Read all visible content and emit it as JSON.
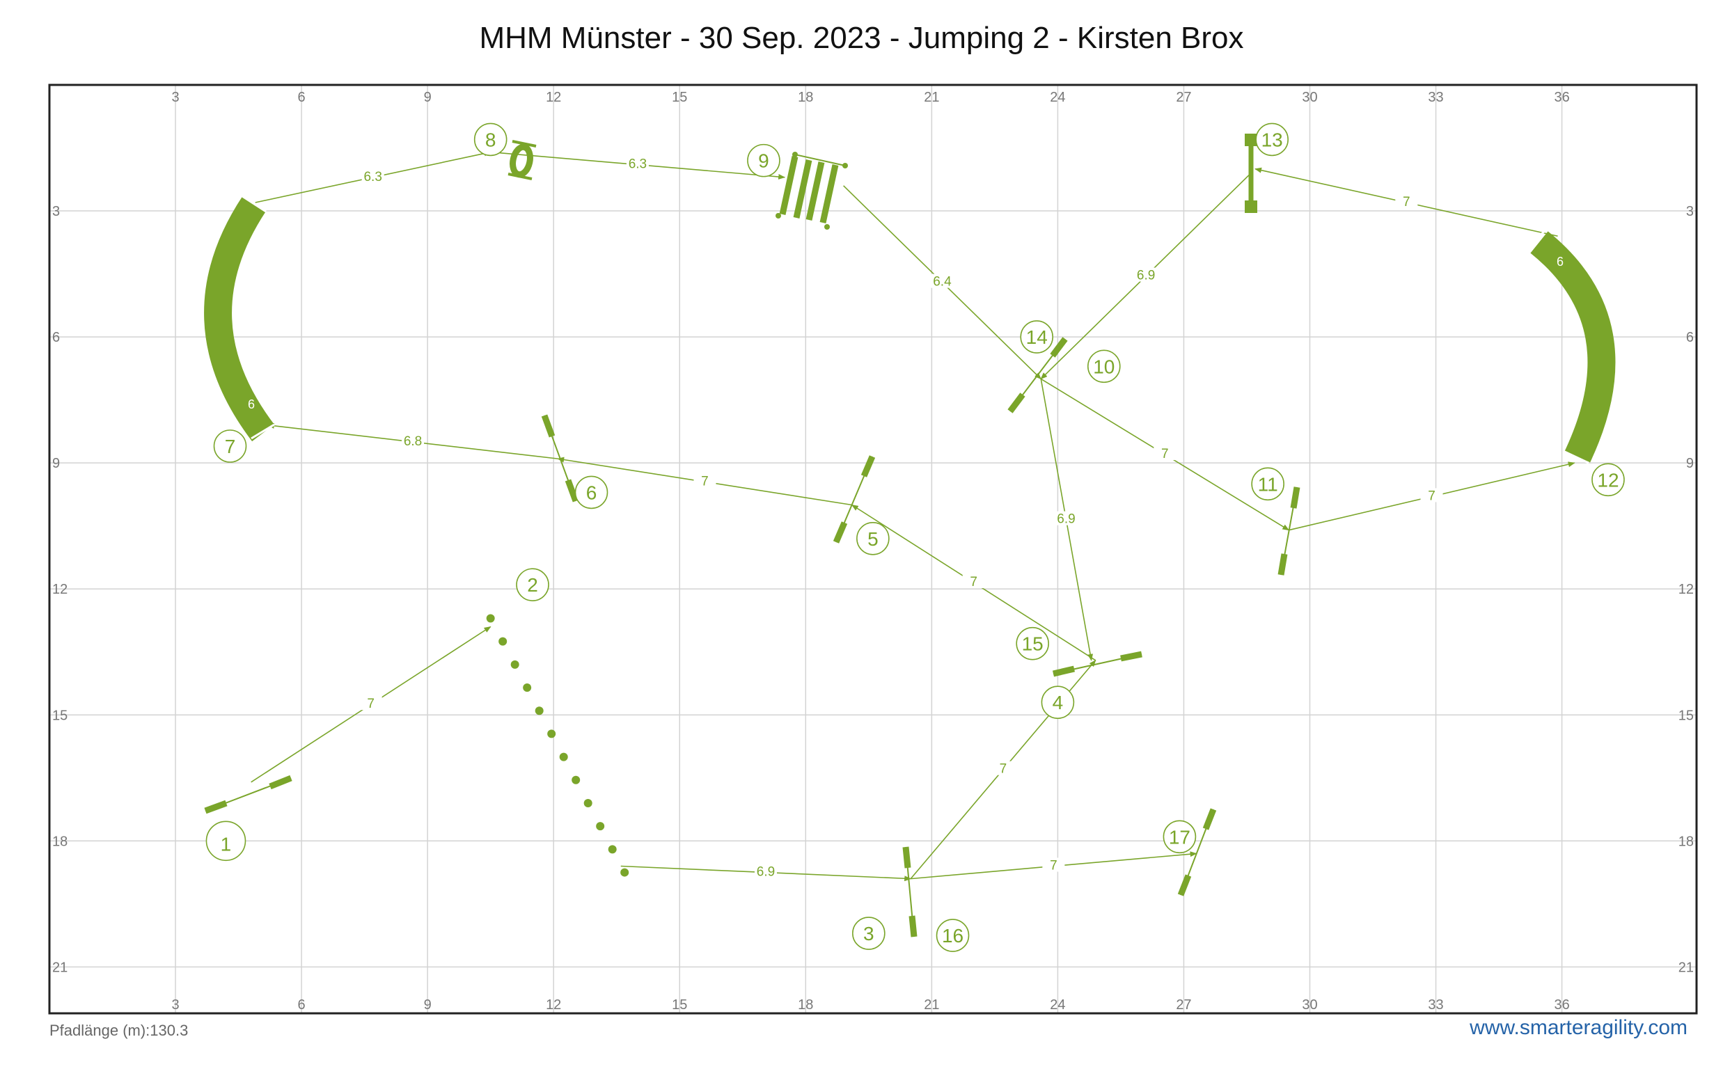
{
  "title": "MHM Münster - 30 Sep. 2023 - Jumping 2 - Kirsten Brox",
  "footer": {
    "path_length": "Pfadlänge (m):130.3",
    "website": "www.smarteragility.com"
  },
  "colors": {
    "obstacle": "#7aa52a",
    "grid": "#d3d3d3",
    "frame": "#222222",
    "link": "#2563a8"
  },
  "grid": {
    "x_ticks": [
      "3",
      "6",
      "9",
      "12",
      "15",
      "18",
      "21",
      "24",
      "27",
      "30",
      "33",
      "36"
    ],
    "y_ticks": [
      "3",
      "6",
      "9",
      "12",
      "15",
      "18",
      "21"
    ]
  },
  "tunnel_labels": [
    "6",
    "6"
  ],
  "numbers": [
    {
      "n": "1",
      "x": 4.2,
      "y": 18.0,
      "big": true
    },
    {
      "n": "2",
      "x": 11.5,
      "y": 11.9
    },
    {
      "n": "3",
      "x": 19.5,
      "y": 20.2
    },
    {
      "n": "4",
      "x": 24.0,
      "y": 14.7
    },
    {
      "n": "5",
      "x": 19.6,
      "y": 10.8
    },
    {
      "n": "6",
      "x": 12.9,
      "y": 9.7
    },
    {
      "n": "7",
      "x": 4.3,
      "y": 8.6
    },
    {
      "n": "8",
      "x": 10.5,
      "y": 1.3
    },
    {
      "n": "9",
      "x": 17.0,
      "y": 1.8
    },
    {
      "n": "10",
      "x": 25.1,
      "y": 6.7
    },
    {
      "n": "11",
      "x": 29.0,
      "y": 9.5
    },
    {
      "n": "12",
      "x": 37.1,
      "y": 9.4
    },
    {
      "n": "13",
      "x": 29.1,
      "y": 1.3
    },
    {
      "n": "14",
      "x": 23.5,
      "y": 6.0
    },
    {
      "n": "15",
      "x": 23.4,
      "y": 13.3
    },
    {
      "n": "16",
      "x": 21.5,
      "y": 20.25
    },
    {
      "n": "17",
      "x": 26.9,
      "y": 17.9
    }
  ],
  "path_segments": [
    {
      "from": [
        4.8,
        16.6
      ],
      "to": [
        10.5,
        12.9
      ],
      "label": "7"
    },
    {
      "from": [
        13.6,
        18.6
      ],
      "to": [
        20.5,
        18.9
      ],
      "label": "6.9"
    },
    {
      "from": [
        20.5,
        18.9
      ],
      "to": [
        24.9,
        13.7
      ],
      "label": "7"
    },
    {
      "from": [
        24.9,
        13.7
      ],
      "to": [
        19.1,
        10.0
      ],
      "label": "7"
    },
    {
      "from": [
        19.1,
        10.0
      ],
      "to": [
        12.1,
        8.9
      ],
      "label": "7"
    },
    {
      "from": [
        12.1,
        8.9
      ],
      "to": [
        5.2,
        8.1
      ],
      "label": "6.8"
    },
    {
      "from": [
        4.9,
        2.8
      ],
      "to": [
        10.5,
        1.6
      ],
      "label": "6.3"
    },
    {
      "from": [
        10.5,
        1.6
      ],
      "to": [
        17.5,
        2.2
      ],
      "label": "6.3"
    },
    {
      "from": [
        18.9,
        2.4
      ],
      "to": [
        23.6,
        7.0
      ],
      "label": "6.4"
    },
    {
      "from": [
        23.6,
        7.0
      ],
      "to": [
        29.5,
        10.6
      ],
      "label": "7"
    },
    {
      "from": [
        29.5,
        10.6
      ],
      "to": [
        36.3,
        9.0
      ],
      "label": "7"
    },
    {
      "from": [
        35.9,
        3.6
      ],
      "to": [
        28.7,
        2.0
      ],
      "label": "7"
    },
    {
      "from": [
        28.6,
        2.1
      ],
      "to": [
        23.6,
        7.0
      ],
      "label": "6.9"
    },
    {
      "from": [
        23.6,
        7.0
      ],
      "to": [
        24.8,
        13.7
      ],
      "label": "6.9"
    },
    {
      "from": [
        20.5,
        18.9
      ],
      "to": [
        27.3,
        18.3
      ],
      "label": "7"
    }
  ]
}
